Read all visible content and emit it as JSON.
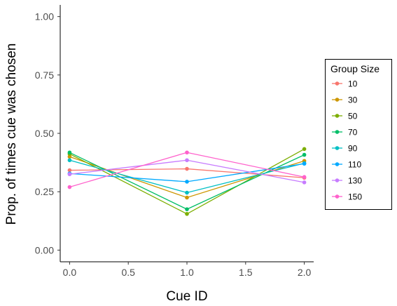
{
  "chart_data": {
    "type": "line",
    "xlabel": "Cue ID",
    "ylabel": "Prop. of times cue was chosen",
    "xlim": [
      -0.08,
      2.08
    ],
    "ylim": [
      -0.05,
      1.05
    ],
    "x_ticks": [
      0.0,
      0.5,
      1.0,
      1.5,
      2.0
    ],
    "x_tick_labels": [
      "0.0",
      "0.5",
      "1.0",
      "1.5",
      "2.0"
    ],
    "y_ticks": [
      0.0,
      0.25,
      0.5,
      0.75,
      1.0
    ],
    "y_tick_labels": [
      "0.00",
      "0.25",
      "0.50",
      "0.75",
      "1.00"
    ],
    "grid": false,
    "legend": {
      "title": "Group Size",
      "position": "right"
    },
    "x": [
      0.0,
      1.0,
      2.0
    ],
    "series": [
      {
        "name": "10",
        "color": "#F8766D",
        "values": [
          0.342,
          0.348,
          0.31
        ]
      },
      {
        "name": "30",
        "color": "#CD9600",
        "values": [
          0.4,
          0.225,
          0.382
        ]
      },
      {
        "name": "50",
        "color": "#7CAE00",
        "values": [
          0.412,
          0.155,
          0.433
        ]
      },
      {
        "name": "70",
        "color": "#00BE67",
        "values": [
          0.418,
          0.175,
          0.408
        ]
      },
      {
        "name": "90",
        "color": "#00BFC4",
        "values": [
          0.385,
          0.246,
          0.372
        ]
      },
      {
        "name": "110",
        "color": "#00A9FF",
        "values": [
          0.328,
          0.293,
          0.37
        ]
      },
      {
        "name": "130",
        "color": "#C77CFF",
        "values": [
          0.325,
          0.385,
          0.29
        ]
      },
      {
        "name": "150",
        "color": "#FF61CC",
        "values": [
          0.27,
          0.418,
          0.313
        ]
      }
    ]
  }
}
